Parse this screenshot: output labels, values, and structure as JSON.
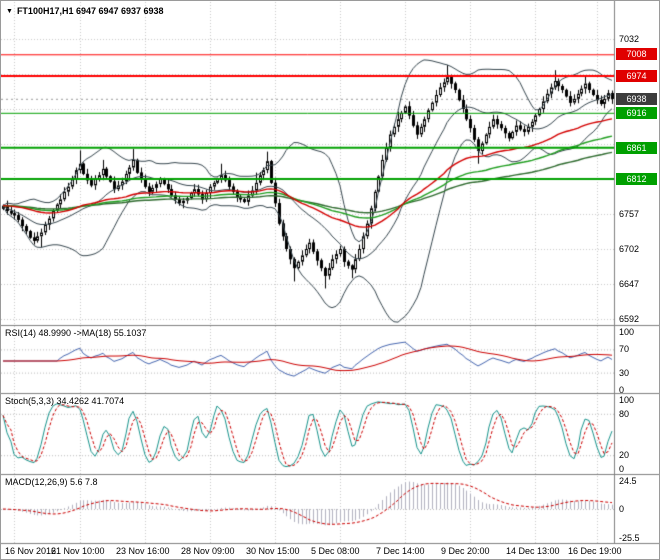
{
  "header": {
    "symbol_info": "FT100H17,H1 6947 6947 6937 6938",
    "dropdown_icon": "▼"
  },
  "colors": {
    "background": "#ffffff",
    "grid": "#c9c9c9",
    "candle_up": "#ffffff",
    "candle_down": "#000000",
    "candle_border": "#000000",
    "bollinger": "#37474f",
    "ema_red": "#d40000",
    "ema_green": "#1f9e1f",
    "ema_green_slow": "#2f6b2f",
    "level_red": "#ff0000",
    "level_green": "#00a000",
    "badge_red": "#e00000",
    "badge_green": "#00a000",
    "badge_current": "#3c3c3c",
    "rsi_line": "#4666b0",
    "rsi_ma": "#cc0000",
    "stoch_k": "#17948c",
    "stoch_d": "#cc0000",
    "macd_hist": "#b2b2c0",
    "macd_signal": "#cc0000",
    "separator": "#808080",
    "text": "#000000"
  },
  "chart_data": {
    "type": "candlestick",
    "symbol": "FT100H17",
    "timeframe": "H1",
    "ohlc_current": {
      "open": 6947,
      "high": 6947,
      "low": 6937,
      "close": 6938
    },
    "y_axis": {
      "min": 6592,
      "max": 7032,
      "step": 55
    },
    "price_axis": {
      "ticks": [
        {
          "text": "7032",
          "price": 7032
        },
        {
          "text": "6757",
          "price": 6757
        },
        {
          "text": "6702",
          "price": 6702
        },
        {
          "text": "6647",
          "price": 6647
        },
        {
          "text": "6592",
          "price": 6592
        }
      ],
      "badges": [
        {
          "text": "7008",
          "price": 7008,
          "kind": "resistance"
        },
        {
          "text": "6974",
          "price": 6974,
          "kind": "resistance"
        },
        {
          "text": "6938",
          "price": 6938,
          "kind": "current"
        },
        {
          "text": "6916",
          "price": 6916,
          "kind": "support"
        },
        {
          "text": "6861",
          "price": 6861,
          "kind": "support"
        },
        {
          "text": "6812",
          "price": 6812,
          "kind": "support"
        }
      ]
    },
    "levels": [
      {
        "price": 7008,
        "color_key": "level_red",
        "width": 1
      },
      {
        "price": 6974,
        "color_key": "level_red",
        "width": 2
      },
      {
        "price": 6916,
        "color_key": "level_green",
        "width": 1
      },
      {
        "price": 6861,
        "color_key": "level_green",
        "width": 2
      },
      {
        "price": 6812,
        "color_key": "level_green",
        "width": 2
      }
    ],
    "time_axis": [
      {
        "text": "16 Nov 2016",
        "bar": 3
      },
      {
        "text": "21 Nov 10:00",
        "bar": 20
      },
      {
        "text": "23 Nov 16:00",
        "bar": 37
      },
      {
        "text": "28 Nov 09:00",
        "bar": 54
      },
      {
        "text": "30 Nov 15:00",
        "bar": 71
      },
      {
        "text": "5 Dec 08:00",
        "bar": 88
      },
      {
        "text": "7 Dec 14:00",
        "bar": 105
      },
      {
        "text": "9 Dec 20:00",
        "bar": 122
      },
      {
        "text": "14 Dec 13:00",
        "bar": 139
      },
      {
        "text": "16 Dec 19:00",
        "bar": 155
      }
    ],
    "first_open": 6765,
    "closes": [
      6770,
      6762,
      6758,
      6755,
      6748,
      6738,
      6730,
      6720,
      6715,
      6722,
      6728,
      6740,
      6750,
      6762,
      6772,
      6780,
      6792,
      6800,
      6812,
      6826,
      6836,
      6820,
      6810,
      6802,
      6812,
      6818,
      6828,
      6816,
      6808,
      6796,
      6802,
      6808,
      6820,
      6830,
      6842,
      6822,
      6812,
      6800,
      6792,
      6798,
      6804,
      6812,
      6804,
      6796,
      6786,
      6780,
      6774,
      6778,
      6782,
      6790,
      6796,
      6788,
      6780,
      6790,
      6800,
      6806,
      6812,
      6818,
      6810,
      6800,
      6792,
      6784,
      6780,
      6776,
      6786,
      6794,
      6806,
      6818,
      6826,
      6840,
      6806,
      6774,
      6742,
      6722,
      6702,
      6686,
      6672,
      6682,
      6692,
      6702,
      6712,
      6698,
      6684,
      6672,
      6660,
      6672,
      6686,
      6694,
      6702,
      6682,
      6676,
      6670,
      6686,
      6702,
      6722,
      6742,
      6766,
      6792,
      6816,
      6842,
      6862,
      6882,
      6894,
      6906,
      6916,
      6926,
      6912,
      6896,
      6882,
      6894,
      6906,
      6920,
      6932,
      6944,
      6956,
      6964,
      6972,
      6962,
      6952,
      6936,
      6922,
      6906,
      6892,
      6874,
      6856,
      6868,
      6882,
      6894,
      6906,
      6898,
      6892,
      6884,
      6876,
      6886,
      6896,
      6890,
      6886,
      6894,
      6902,
      6912,
      6922,
      6934,
      6946,
      6956,
      6966,
      6958,
      6952,
      6942,
      6932,
      6938,
      6946,
      6954,
      6962,
      6952,
      6944,
      6936,
      6930,
      6938,
      6947,
      6938
    ],
    "extra_wicks": [
      [
        10,
        0,
        10
      ],
      [
        20,
        18,
        0
      ],
      [
        26,
        10,
        0
      ],
      [
        34,
        14,
        0
      ],
      [
        57,
        10,
        0
      ],
      [
        66,
        10,
        0
      ],
      [
        69,
        12,
        0
      ],
      [
        76,
        0,
        16
      ],
      [
        84,
        0,
        18
      ],
      [
        91,
        0,
        12
      ],
      [
        103,
        8,
        0
      ],
      [
        116,
        14,
        0
      ],
      [
        124,
        0,
        12
      ],
      [
        144,
        12,
        0
      ],
      [
        152,
        8,
        0
      ]
    ],
    "overlays": {
      "bollinger_period": 20,
      "bollinger_dev": 2,
      "ema_fast": 55,
      "ema_mid": 90,
      "ema_slow": 140
    },
    "indicator_panels": [
      {
        "type": "line",
        "name": "RSI",
        "label": "RSI(14) 48.9990 ->MA(18) 55.1037",
        "period": 14,
        "ma_period": 18,
        "current": 48.999,
        "ma_current": 55.1037,
        "range": [
          0,
          100
        ],
        "level_lines": [
          70,
          30
        ],
        "y_labels": [
          {
            "text": "100",
            "v": 100
          },
          {
            "text": "70",
            "v": 70
          },
          {
            "text": "30",
            "v": 30
          },
          {
            "text": "0",
            "v": 0
          }
        ]
      },
      {
        "type": "line",
        "name": "Stochastic",
        "label": "Stoch(5,3,3) 34.4262 41.7074",
        "params": [
          5,
          3,
          3
        ],
        "current": 34.4262,
        "signal_current": 41.7074,
        "range": [
          0,
          100
        ],
        "level_lines": [
          80,
          20
        ],
        "y_labels": [
          {
            "text": "100",
            "v": 100
          },
          {
            "text": "80",
            "v": 80
          },
          {
            "text": "20",
            "v": 20
          },
          {
            "text": "0",
            "v": 0
          }
        ]
      },
      {
        "type": "bar",
        "name": "MACD",
        "label": "MACD(12,26,9) 5.6 7.8",
        "params": [
          12,
          26,
          9
        ],
        "current": 5.6,
        "signal_current": 7.8,
        "range": [
          -25.5,
          24.5
        ],
        "level_lines": [
          0
        ],
        "y_labels": [
          {
            "text": "24.5",
            "v": 24.5
          },
          {
            "text": "0",
            "v": 0
          },
          {
            "text": "-25.5",
            "v": -25.5
          }
        ]
      }
    ]
  }
}
